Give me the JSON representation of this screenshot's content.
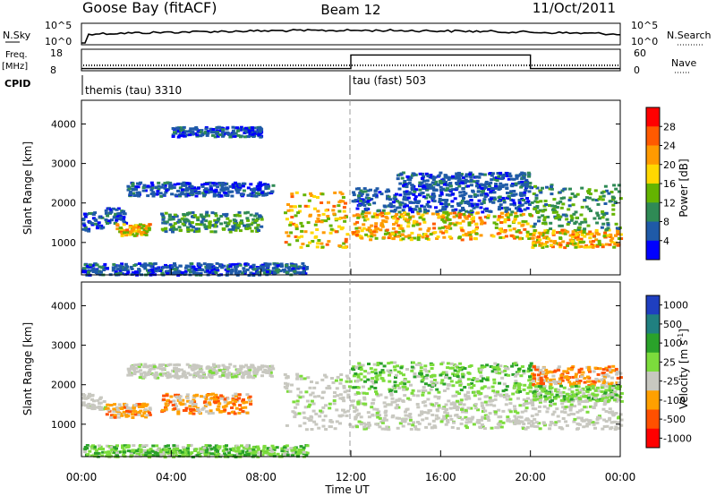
{
  "header": {
    "station": "Goose Bay (fitACF)",
    "beam": "Beam 12",
    "date": "11/Oct/2011"
  },
  "top_panels": {
    "nsky_label": "N.Sky",
    "nsky_ticks": [
      "10^5",
      "10^0"
    ],
    "nsearch_label": "N.Search",
    "nsearch_ticks": [
      "10^5",
      "10^0"
    ],
    "freq_label": "Freq.",
    "freq_unit": "[MHz]",
    "freq_ticks": [
      "18",
      "8"
    ],
    "nave_label": "Nave",
    "nave_ticks": [
      "60",
      "0"
    ],
    "cpid_label": "CPID",
    "cpid_segments": [
      {
        "name": "themis (tau) 3310",
        "start_h": 0,
        "end_h": 12
      },
      {
        "name": "tau (fast) 503",
        "start_h": 12,
        "end_h": 24
      }
    ],
    "nave_step": {
      "low": 6,
      "high": 44,
      "start_h": 12,
      "end_h": 20
    }
  },
  "power_scale": {
    "title": "Power [dB]",
    "ticks": [
      "28",
      "24",
      "20",
      "16",
      "12",
      "8",
      "4"
    ],
    "colors": [
      "#ff0000",
      "#ff5a00",
      "#ff9a00",
      "#ffd800",
      "#64b400",
      "#2f8a55",
      "#1f5aa8",
      "#0000ff"
    ]
  },
  "velocity_scale": {
    "title": "Velocity [m s",
    "title_sup": "-1",
    "title_end": "]",
    "ticks": [
      "1000",
      "500",
      "100",
      "25",
      "-25",
      "-100",
      "-500",
      "-1000"
    ],
    "colors": [
      "#1f3fc0",
      "#208080",
      "#2aa22a",
      "#7cdc3c",
      "#c8c8c0",
      "#ffa000",
      "#ff5000",
      "#ff0000"
    ]
  },
  "chart_data": [
    {
      "type": "heatmap",
      "title": "Power",
      "ylabel": "Slant Range [km]",
      "xlabel": "",
      "y_ticks": [
        1000,
        2000,
        3000,
        4000
      ],
      "ylim": [
        180,
        4600
      ],
      "xlim_hours": [
        0,
        24
      ],
      "bands": [
        {
          "t0": 0.0,
          "t1": 0.9,
          "r0": 1300,
          "r1": 1800,
          "level": "low"
        },
        {
          "t0": 1.0,
          "t1": 2.0,
          "r0": 1500,
          "r1": 1900,
          "level": "low"
        },
        {
          "t0": 1.5,
          "t1": 3.0,
          "r0": 1200,
          "r1": 1500,
          "level": "high"
        },
        {
          "t0": 2.0,
          "t1": 8.5,
          "r0": 2200,
          "r1": 2550,
          "level": "low"
        },
        {
          "t0": 3.5,
          "t1": 8.0,
          "r0": 1300,
          "r1": 1800,
          "level": "mid"
        },
        {
          "t0": 4.0,
          "t1": 8.0,
          "r0": 3700,
          "r1": 3950,
          "level": "low"
        },
        {
          "t0": 9.0,
          "t1": 11.8,
          "r0": 900,
          "r1": 2300,
          "level": "high"
        },
        {
          "t0": 12.0,
          "t1": 20.0,
          "r0": 1100,
          "r1": 1800,
          "level": "high"
        },
        {
          "t0": 12.0,
          "t1": 20.0,
          "r0": 1800,
          "r1": 2400,
          "level": "low"
        },
        {
          "t0": 14.0,
          "t1": 20.0,
          "r0": 2400,
          "r1": 2800,
          "level": "low"
        },
        {
          "t0": 20.0,
          "t1": 24.0,
          "r0": 900,
          "r1": 1350,
          "level": "high"
        },
        {
          "t0": 20.0,
          "t1": 24.0,
          "r0": 1350,
          "r1": 2500,
          "level": "mid"
        },
        {
          "t0": 0.0,
          "t1": 10.0,
          "r0": 200,
          "r1": 500,
          "level": "low"
        }
      ]
    },
    {
      "type": "heatmap",
      "title": "Velocity",
      "ylabel": "Slant Range [km]",
      "xlabel": "Time UT",
      "x_ticks": [
        "00:00",
        "04:00",
        "08:00",
        "12:00",
        "16:00",
        "20:00",
        "00:00"
      ],
      "y_ticks": [
        1000,
        2000,
        3000,
        4000
      ],
      "ylim": [
        180,
        4600
      ],
      "xlim_hours": [
        0,
        24
      ],
      "bands": [
        {
          "t0": 0.0,
          "t1": 1.0,
          "r0": 1400,
          "r1": 1800,
          "level": "ground"
        },
        {
          "t0": 1.0,
          "t1": 3.0,
          "r0": 1200,
          "r1": 1550,
          "level": "neg"
        },
        {
          "t0": 3.5,
          "t1": 7.5,
          "r0": 1300,
          "r1": 1800,
          "level": "neg"
        },
        {
          "t0": 2.0,
          "t1": 8.5,
          "r0": 2200,
          "r1": 2550,
          "level": "ground"
        },
        {
          "t0": 9.0,
          "t1": 12.0,
          "r0": 900,
          "r1": 2300,
          "level": "ground"
        },
        {
          "t0": 12.0,
          "t1": 24.0,
          "r0": 900,
          "r1": 1800,
          "level": "ground"
        },
        {
          "t0": 12.0,
          "t1": 20.0,
          "r0": 1800,
          "r1": 2600,
          "level": "pos"
        },
        {
          "t0": 20.0,
          "t1": 24.0,
          "r0": 2000,
          "r1": 2500,
          "level": "neg"
        },
        {
          "t0": 20.0,
          "t1": 24.0,
          "r0": 1600,
          "r1": 2000,
          "level": "pos"
        },
        {
          "t0": 0.0,
          "t1": 10.0,
          "r0": 200,
          "r1": 500,
          "level": "pos"
        }
      ]
    }
  ]
}
